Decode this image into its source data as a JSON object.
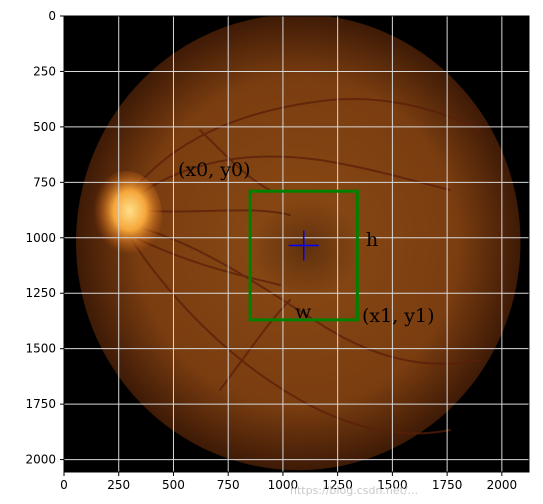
{
  "image": {
    "subject": "retinal-fundus-photograph",
    "width_units": 2124,
    "height_units": 2056,
    "background_color": "#000000",
    "fundus_color_center": "#8a4a14",
    "fundus_color_edge": "#3e1a06",
    "optic_disc_color": "#f5a63a",
    "vessel_color": "#5a1f0a",
    "gridlines": true,
    "grid_color": "#d9d9d9"
  },
  "axes": {
    "x_ticks": [
      "0",
      "250",
      "500",
      "750",
      "1000",
      "1250",
      "1500",
      "1750",
      "2000"
    ],
    "y_ticks": [
      "0",
      "250",
      "500",
      "750",
      "1000",
      "1250",
      "1500",
      "1750",
      "2000"
    ],
    "x_range": [
      0,
      2124
    ],
    "y_range": [
      0,
      2056
    ],
    "y_inverted": true
  },
  "annotations": {
    "box": {
      "x0": 850,
      "y0": 790,
      "x1": 1340,
      "y1": 1370,
      "color": "#008000"
    },
    "center_marker": {
      "x": 1095,
      "y": 1035,
      "color": "#0000ff"
    },
    "labels": {
      "top_left": "(x0, y0)",
      "height": "h",
      "width": "w",
      "bottom_right": "(x1, y1)"
    }
  },
  "watermark": "https://blog.csdn.net/..."
}
